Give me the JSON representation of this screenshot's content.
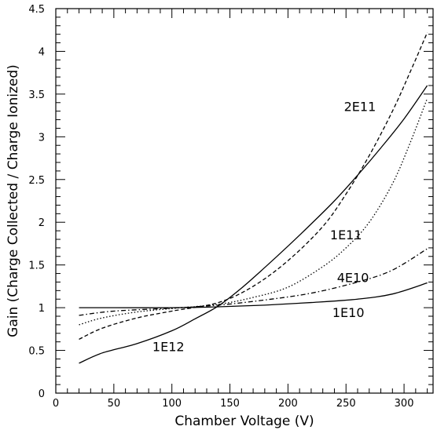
{
  "chart_data": {
    "type": "line",
    "title": "",
    "xlabel": "Chamber Voltage (V)",
    "ylabel": "Gain (Charge Collected / Charge Ionized)",
    "xlim": [
      0,
      325
    ],
    "ylim": [
      0,
      4.5
    ],
    "x_ticks": [
      "0",
      "50",
      "100",
      "150",
      "200",
      "250",
      "300"
    ],
    "y_ticks": [
      "0",
      "0.5",
      "1",
      "1.5",
      "2",
      "2.5",
      "3",
      "3.5",
      "4",
      "4.5"
    ],
    "grid": false,
    "legend": "none (curves labeled directly)",
    "series": [
      {
        "name": "1E10",
        "style": "solid",
        "x": [
          20,
          50,
          100,
          140,
          180,
          220,
          260,
          290,
          320
        ],
        "y": [
          1.0,
          1.0,
          1.0,
          1.01,
          1.03,
          1.06,
          1.1,
          1.16,
          1.29
        ]
      },
      {
        "name": "4E10",
        "style": "dashdot",
        "x": [
          20,
          50,
          100,
          140,
          180,
          220,
          260,
          290,
          320
        ],
        "y": [
          0.91,
          0.96,
          0.995,
          1.03,
          1.09,
          1.17,
          1.3,
          1.44,
          1.69
        ]
      },
      {
        "name": "1E11",
        "style": "dotted",
        "x": [
          20,
          40,
          70,
          100,
          140,
          170,
          200,
          230,
          250,
          270,
          290,
          305,
          320
        ],
        "y": [
          0.8,
          0.88,
          0.95,
          0.99,
          1.04,
          1.12,
          1.24,
          1.48,
          1.7,
          2.0,
          2.45,
          2.92,
          3.45
        ]
      },
      {
        "name": "2E11",
        "style": "dashed",
        "x": [
          20,
          40,
          70,
          100,
          140,
          170,
          200,
          230,
          250,
          270,
          290,
          305,
          320
        ],
        "y": [
          0.63,
          0.76,
          0.88,
          0.96,
          1.06,
          1.25,
          1.55,
          1.95,
          2.33,
          2.78,
          3.3,
          3.75,
          4.22
        ]
      },
      {
        "name": "1E12",
        "style": "solid",
        "x": [
          20,
          40,
          70,
          100,
          120,
          140,
          160,
          180,
          200,
          220,
          240,
          260,
          280,
          300,
          320
        ],
        "y": [
          0.35,
          0.47,
          0.58,
          0.73,
          0.87,
          1.02,
          1.23,
          1.47,
          1.72,
          1.98,
          2.25,
          2.55,
          2.87,
          3.21,
          3.6
        ]
      }
    ],
    "annotations": [
      {
        "text": "2E11",
        "x": 262,
        "y": 3.3
      },
      {
        "text": "1E11",
        "x": 250,
        "y": 1.8
      },
      {
        "text": "4E10",
        "x": 256,
        "y": 1.3
      },
      {
        "text": "1E10",
        "x": 252,
        "y": 0.89
      },
      {
        "text": "1E12",
        "x": 97,
        "y": 0.49
      }
    ]
  }
}
